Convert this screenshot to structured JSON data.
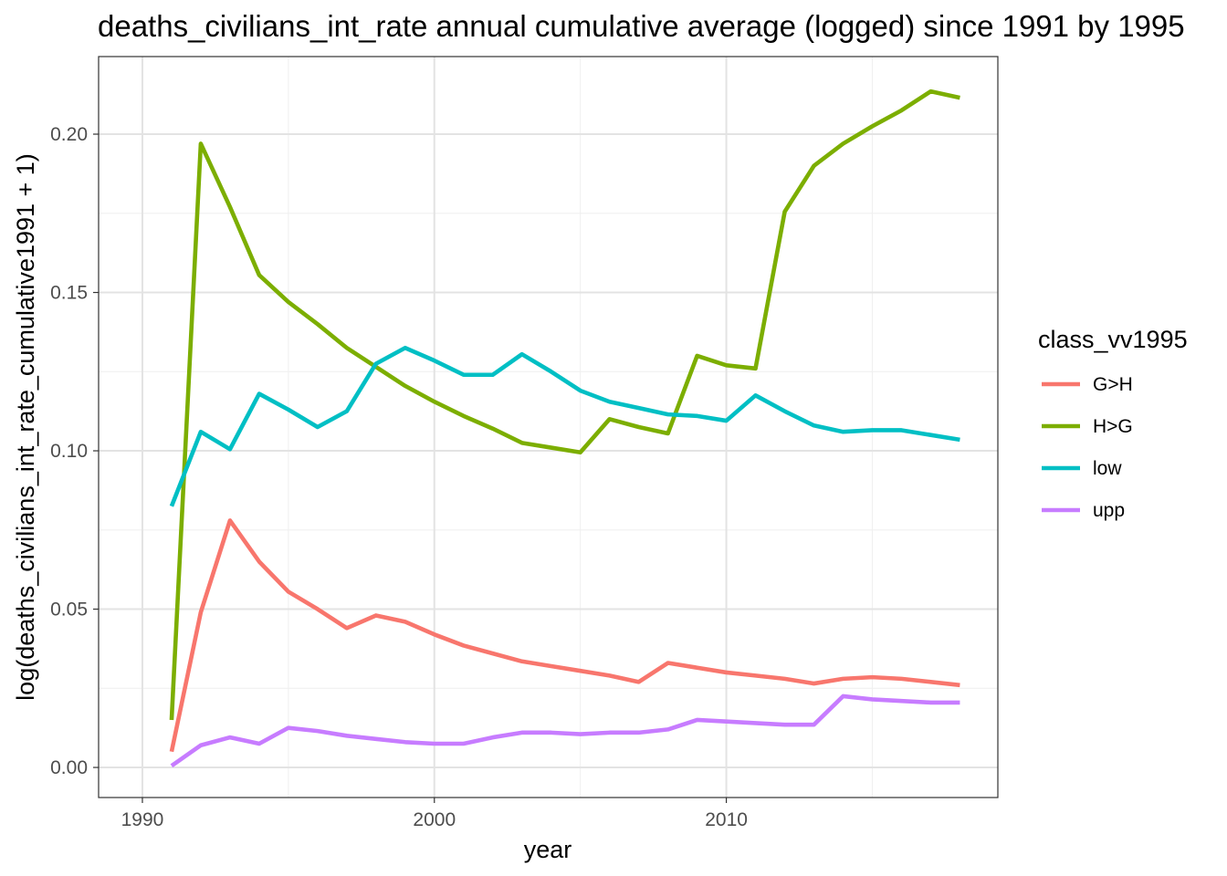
{
  "chart_data": {
    "type": "line",
    "title": "deaths_civilians_int_rate annual cumulative average (logged) since 1991 by 1995",
    "xlabel": "year",
    "ylabel": "log(deaths_civilians_int_rate_cumulative1991 + 1)",
    "xlim": [
      1890,
      1920.4
    ],
    "ylim": [
      -0.0095,
      0.2245
    ],
    "x_ticks": [
      1990,
      2000,
      2010
    ],
    "x_tick_labels": [
      "1990",
      "2000",
      "2010"
    ],
    "y_ticks": [
      0.0,
      0.05,
      0.1,
      0.15,
      0.2
    ],
    "y_tick_labels": [
      "0.00",
      "0.05",
      "0.10",
      "0.15",
      "0.20"
    ],
    "grid": true,
    "legend": {
      "title": "class_vv1995",
      "position": "right"
    },
    "x": [
      1991,
      1992,
      1993,
      1994,
      1995,
      1996,
      1997,
      1998,
      1999,
      2000,
      2001,
      2002,
      2003,
      2004,
      2005,
      2006,
      2007,
      2008,
      2009,
      2010,
      2011,
      2012,
      2013,
      2014,
      2015,
      2016,
      2017,
      2018
    ],
    "series": [
      {
        "name": "G>H",
        "color": "#F8766D",
        "values": [
          0.005,
          0.049,
          0.078,
          0.065,
          0.0555,
          0.05,
          0.044,
          0.048,
          0.046,
          0.042,
          0.0385,
          0.036,
          0.0335,
          0.032,
          0.0305,
          0.029,
          0.027,
          0.033,
          0.0315,
          0.03,
          0.029,
          0.028,
          0.0265,
          0.028,
          0.0285,
          0.028,
          0.027,
          0.026
        ]
      },
      {
        "name": "H>G",
        "color": "#7CAE00",
        "values": [
          0.015,
          0.197,
          0.177,
          0.1555,
          0.147,
          0.14,
          0.1325,
          0.1265,
          0.1205,
          0.1155,
          0.111,
          0.107,
          0.1025,
          0.101,
          0.0995,
          0.11,
          0.1075,
          0.1055,
          0.13,
          0.127,
          0.126,
          0.1755,
          0.19,
          0.197,
          0.2025,
          0.2075,
          0.2135,
          0.2115
        ]
      },
      {
        "name": "low",
        "color": "#00BFC4",
        "values": [
          0.0825,
          0.106,
          0.1005,
          0.118,
          0.113,
          0.1075,
          0.1125,
          0.1275,
          0.1325,
          0.1285,
          0.124,
          0.124,
          0.1305,
          0.125,
          0.119,
          0.1155,
          0.1135,
          0.1115,
          0.111,
          0.1095,
          0.1175,
          0.1125,
          0.108,
          0.106,
          0.1065,
          0.1065,
          0.105,
          0.1035
        ]
      },
      {
        "name": "upp",
        "color": "#C77CFF",
        "values": [
          0.0005,
          0.007,
          0.0095,
          0.0075,
          0.0125,
          0.0115,
          0.01,
          0.009,
          0.008,
          0.0075,
          0.0075,
          0.0095,
          0.011,
          0.011,
          0.0105,
          0.011,
          0.011,
          0.012,
          0.015,
          0.0145,
          0.014,
          0.0135,
          0.0135,
          0.0225,
          0.0215,
          0.021,
          0.0205,
          0.0205
        ]
      }
    ]
  }
}
